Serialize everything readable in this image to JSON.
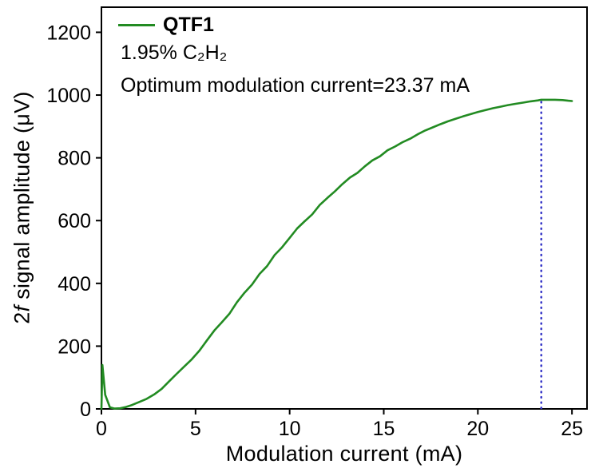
{
  "chart_data": {
    "type": "line",
    "title": "",
    "xlabel": "Modulation current (mA)",
    "ylabel": "2f signal amplitude (μV)",
    "ylabel_parts": {
      "pre": "2",
      "italic": "f",
      "post": " signal amplitude (μV)"
    },
    "xlim": [
      0,
      25.8
    ],
    "ylim": [
      0,
      1280
    ],
    "xticks": [
      0,
      5,
      10,
      15,
      20,
      25
    ],
    "yticks": [
      0,
      200,
      400,
      600,
      800,
      1000,
      1200
    ],
    "grid": false,
    "legend_position": "top-left-inside",
    "legend": [
      {
        "label": "QTF1",
        "color": "#228B22"
      }
    ],
    "annotations": {
      "gas_label": "1.95% C₂H₂",
      "optimum_label": "Optimum modulation current=23.37 mA",
      "optimum_x": 23.37,
      "optimum_value": 985,
      "optimum_line_color": "#3939C8",
      "optimum_line_style": "dotted"
    },
    "series": [
      {
        "name": "QTF1",
        "color": "#228B22",
        "x": [
          0,
          0.05,
          0.2,
          0.45,
          0.7,
          1.0,
          1.3,
          1.6,
          2.0,
          2.4,
          2.8,
          3.2,
          3.6,
          4.0,
          4.4,
          4.8,
          5.2,
          5.6,
          6.0,
          6.4,
          6.8,
          7.2,
          7.6,
          8.0,
          8.4,
          8.8,
          9.2,
          9.6,
          10.0,
          10.4,
          10.8,
          11.2,
          11.6,
          12.0,
          12.4,
          12.8,
          13.2,
          13.6,
          14.0,
          14.4,
          14.8,
          15.2,
          15.6,
          16.0,
          16.4,
          16.8,
          17.2,
          17.6,
          18.0,
          18.4,
          18.8,
          19.2,
          19.6,
          20.0,
          20.4,
          20.8,
          21.2,
          21.6,
          22.0,
          22.4,
          22.8,
          23.2,
          23.37,
          23.7,
          24.1,
          24.5,
          24.8,
          25.0
        ],
        "y": [
          0,
          140,
          45,
          5,
          1,
          2,
          6,
          12,
          22,
          32,
          46,
          64,
          88,
          112,
          135,
          158,
          185,
          218,
          250,
          276,
          303,
          340,
          370,
          396,
          430,
          455,
          490,
          515,
          545,
          575,
          598,
          620,
          650,
          672,
          693,
          716,
          737,
          752,
          773,
          792,
          805,
          824,
          836,
          850,
          861,
          875,
          887,
          897,
          907,
          916,
          924,
          932,
          939,
          946,
          952,
          958,
          963,
          968,
          972,
          976,
          980,
          983,
          985,
          985,
          985,
          984,
          982,
          981
        ]
      }
    ],
    "axis_color": "#000000",
    "background_color": "#ffffff"
  }
}
